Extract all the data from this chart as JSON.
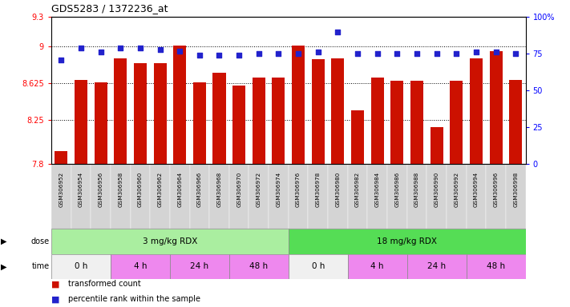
{
  "title": "GDS5283 / 1372236_at",
  "samples": [
    "GSM306952",
    "GSM306954",
    "GSM306956",
    "GSM306958",
    "GSM306960",
    "GSM306962",
    "GSM306964",
    "GSM306966",
    "GSM306968",
    "GSM306970",
    "GSM306972",
    "GSM306974",
    "GSM306976",
    "GSM306978",
    "GSM306980",
    "GSM306982",
    "GSM306984",
    "GSM306986",
    "GSM306988",
    "GSM306990",
    "GSM306992",
    "GSM306994",
    "GSM306996",
    "GSM306998"
  ],
  "bar_values": [
    7.93,
    8.66,
    8.63,
    8.88,
    8.83,
    8.83,
    9.01,
    8.63,
    8.73,
    8.6,
    8.68,
    8.68,
    9.01,
    8.87,
    8.88,
    8.35,
    8.68,
    8.65,
    8.65,
    8.18,
    8.65,
    8.88,
    8.95,
    8.66
  ],
  "percentile_values": [
    71,
    79,
    76,
    79,
    79,
    78,
    77,
    74,
    74,
    74,
    75,
    75,
    75,
    76,
    90,
    75,
    75,
    75,
    75,
    75,
    75,
    76,
    76,
    75
  ],
  "ymin": 7.8,
  "ymax": 9.3,
  "yticks": [
    7.8,
    8.25,
    8.625,
    9.0,
    9.3
  ],
  "ytick_labels": [
    "7.8",
    "8.25",
    "8.625",
    "9",
    "9.3"
  ],
  "right_yticks": [
    0,
    25,
    50,
    75,
    100
  ],
  "right_ytick_labels": [
    "0",
    "25",
    "50",
    "75",
    "100%"
  ],
  "bar_color": "#cc1100",
  "dot_color": "#2222cc",
  "dose_groups": [
    {
      "label": "3 mg/kg RDX",
      "start": 0,
      "end": 12,
      "color": "#aaeea0"
    },
    {
      "label": "18 mg/kg RDX",
      "start": 12,
      "end": 24,
      "color": "#55dd55"
    }
  ],
  "time_colors": [
    "#f0f0f0",
    "#ee88ee",
    "#ee88ee",
    "#ee88ee",
    "#f0f0f0",
    "#ee88ee",
    "#ee88ee",
    "#ee88ee"
  ],
  "time_labels": [
    "0 h",
    "4 h",
    "24 h",
    "48 h",
    "0 h",
    "4 h",
    "24 h",
    "48 h"
  ],
  "time_starts": [
    0,
    3,
    6,
    9,
    12,
    15,
    18,
    21
  ],
  "time_ends": [
    3,
    6,
    9,
    12,
    15,
    18,
    21,
    24
  ],
  "legend_red_label": "transformed count",
  "legend_blue_label": "percentile rank within the sample"
}
